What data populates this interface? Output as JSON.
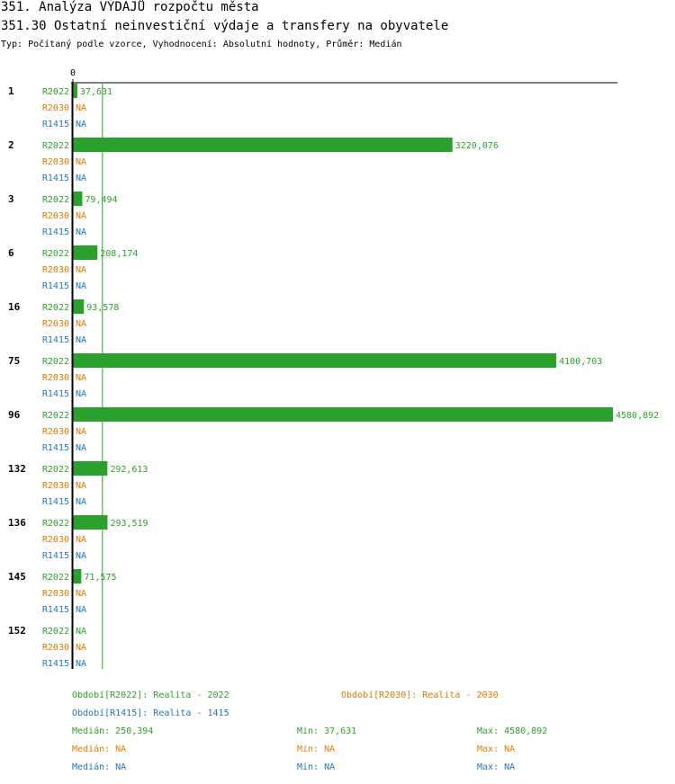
{
  "header": {
    "title": "351. Analýza VÝDAJŮ rozpočtu města",
    "subtitle_title": "351.30 Ostatní neinvestiční výdaje a transfery na obyvatele",
    "meta": "Typ: Počítaný podle vzorce, Vyhodnocení: Absolutní hodnoty, Průměr: Medián"
  },
  "colors": {
    "R2022": "#2ca02c",
    "R2030": "#e07b00",
    "R1415": "#1f77b4",
    "axis": "#000000"
  },
  "chart_data": {
    "type": "bar",
    "orientation": "horizontal",
    "x_tick_labels": [
      "0"
    ],
    "xlim": [
      0,
      4580.892
    ],
    "na_label": "NA",
    "reference_line": {
      "value": 250.394,
      "label": "Medián"
    },
    "series": [
      {
        "key": "R2022",
        "name": "R2022"
      },
      {
        "key": "R2030",
        "name": "R2030"
      },
      {
        "key": "R1415",
        "name": "R1415"
      }
    ],
    "groups": [
      {
        "label": "1",
        "values": {
          "R2022": 37.631,
          "R2030": null,
          "R1415": null
        }
      },
      {
        "label": "2",
        "values": {
          "R2022": 3220.076,
          "R2030": null,
          "R1415": null
        }
      },
      {
        "label": "3",
        "values": {
          "R2022": 79.494,
          "R2030": null,
          "R1415": null
        }
      },
      {
        "label": "6",
        "values": {
          "R2022": 208.174,
          "R2030": null,
          "R1415": null
        }
      },
      {
        "label": "16",
        "values": {
          "R2022": 93.578,
          "R2030": null,
          "R1415": null
        }
      },
      {
        "label": "75",
        "values": {
          "R2022": 4100.703,
          "R2030": null,
          "R1415": null
        }
      },
      {
        "label": "96",
        "values": {
          "R2022": 4580.892,
          "R2030": null,
          "R1415": null
        }
      },
      {
        "label": "132",
        "values": {
          "R2022": 292.613,
          "R2030": null,
          "R1415": null
        }
      },
      {
        "label": "136",
        "values": {
          "R2022": 293.519,
          "R2030": null,
          "R1415": null
        }
      },
      {
        "label": "145",
        "values": {
          "R2022": 71.575,
          "R2030": null,
          "R1415": null
        }
      },
      {
        "label": "152",
        "values": {
          "R2022": null,
          "R2030": null,
          "R1415": null
        }
      }
    ],
    "value_labels": {
      "1": "37,631",
      "2": "3220,076",
      "3": "79,494",
      "6": "208,174",
      "16": "93,578",
      "75": "4100,703",
      "96": "4580,892",
      "132": "292,613",
      "136": "293,519",
      "145": "71,575"
    }
  },
  "legend": {
    "period_R2022": "Období[R2022]: Realita - 2022",
    "period_R2030": "Období[R2030]: Realita - 2030",
    "period_R1415": "Období[R1415]: Realita - 1415",
    "stats": [
      {
        "key": "R2022",
        "median": "Medián: 250,394",
        "min": "Min: 37,631",
        "max": "Max: 4580,892"
      },
      {
        "key": "R2030",
        "median": "Medián: NA",
        "min": "Min: NA",
        "max": "Max: NA"
      },
      {
        "key": "R1415",
        "median": "Medián: NA",
        "min": "Min: NA",
        "max": "Max: NA"
      }
    ]
  }
}
